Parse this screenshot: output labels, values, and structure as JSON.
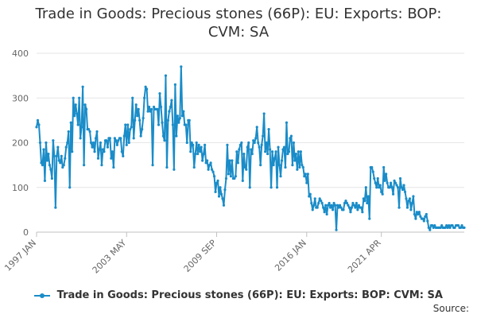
{
  "chart_data": {
    "type": "line",
    "title": "Trade in Goods: Precious stones (66P): EU: Exports: BOP: CVM: SA",
    "xlabel": "",
    "ylabel": "",
    "ylim": [
      0,
      400
    ],
    "yticks": [
      0,
      100,
      200,
      300,
      400
    ],
    "xticks": [
      "1997 JAN",
      "2003 MAY",
      "2009 SEP",
      "2016 JAN",
      "2021 APR"
    ],
    "grid": true,
    "legend": "bottom",
    "color": "#1a8cc8",
    "series": [
      {
        "name": "Trade in Goods: Precious stones (66P): EU: Exports: BOP: CVM: SA",
        "start": "1997-01",
        "values": [
          235,
          250,
          240,
          200,
          155,
          150,
          185,
          115,
          200,
          160,
          175,
          150,
          140,
          120,
          205,
          170,
          55,
          170,
          190,
          160,
          155,
          170,
          145,
          150,
          165,
          190,
          200,
          225,
          100,
          245,
          180,
          300,
          260,
          285,
          265,
          240,
          300,
          210,
          235,
          325,
          150,
          285,
          275,
          230,
          230,
          225,
          200,
          190,
          200,
          180,
          210,
          225,
          165,
          185,
          200,
          150,
          185,
          180,
          205,
          205,
          190,
          210,
          210,
          165,
          180,
          145,
          210,
          205,
          195,
          205,
          210,
          210,
          180,
          170,
          215,
          240,
          195,
          240,
          200,
          230,
          235,
          300,
          210,
          250,
          285,
          260,
          275,
          250,
          215,
          230,
          255,
          300,
          325,
          320,
          270,
          280,
          270,
          275,
          150,
          280,
          275,
          275,
          275,
          240,
          310,
          280,
          245,
          215,
          205,
          350,
          145,
          250,
          270,
          280,
          295,
          240,
          140,
          330,
          215,
          260,
          245,
          255,
          370,
          260,
          270,
          240,
          240,
          200,
          250,
          250,
          180,
          200,
          195,
          145,
          175,
          200,
          175,
          195,
          180,
          190,
          160,
          175,
          195,
          155,
          160,
          140,
          150,
          155,
          140,
          135,
          125,
          90,
          110,
          115,
          80,
          100,
          85,
          75,
          60,
          95,
          120,
          195,
          130,
          160,
          125,
          160,
          120,
          120,
          125,
          180,
          155,
          185,
          195,
          200,
          115,
          175,
          145,
          140,
          190,
          200,
          100,
          185,
          175,
          205,
          200,
          210,
          235,
          200,
          190,
          150,
          195,
          215,
          265,
          180,
          200,
          175,
          230,
          185,
          100,
          180,
          150,
          165,
          180,
          100,
          190,
          150,
          125,
          160,
          185,
          190,
          145,
          245,
          175,
          180,
          210,
          215,
          150,
          200,
          160,
          175,
          140,
          180,
          145,
          180,
          150,
          145,
          125,
          130,
          110,
          130,
          80,
          85,
          65,
          50,
          60,
          75,
          55,
          55,
          65,
          75,
          70,
          65,
          55,
          45,
          60,
          40,
          60,
          65,
          55,
          60,
          50,
          65,
          60,
          5,
          60,
          55,
          60,
          55,
          50,
          50,
          65,
          70,
          65,
          60,
          55,
          45,
          55,
          65,
          60,
          55,
          65,
          50,
          60,
          55,
          55,
          45,
          75,
          70,
          100,
          65,
          80,
          30,
          145,
          145,
          135,
          120,
          110,
          100,
          120,
          100,
          105,
          90,
          85,
          145,
          115,
          130,
          110,
          100,
          100,
          110,
          100,
          85,
          115,
          110,
          105,
          100,
          55,
          120,
          100,
          95,
          105,
          90,
          75,
          55,
          70,
          75,
          50,
          65,
          80,
          40,
          30,
          45,
          40,
          45,
          35,
          30,
          30,
          25,
          35,
          40,
          25,
          10,
          5,
          15,
          15,
          10,
          15,
          10,
          10,
          10,
          10,
          10,
          15,
          10,
          10,
          10,
          15,
          10,
          15,
          10,
          15,
          15,
          10,
          10,
          15,
          15,
          15,
          10,
          10,
          15,
          10,
          10
        ]
      }
    ],
    "source_label": "Source:"
  }
}
